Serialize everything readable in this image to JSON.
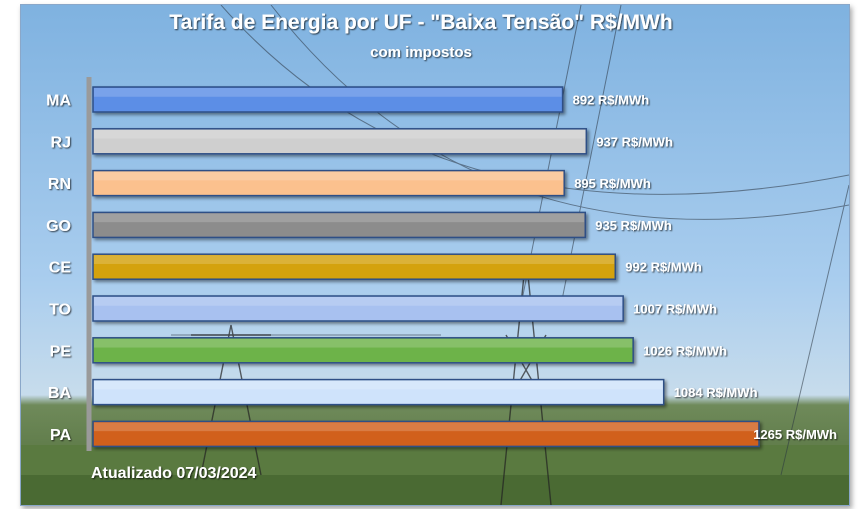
{
  "chart_data": {
    "type": "bar",
    "orientation": "horizontal",
    "title": "Tarifa de Energia por UF - \"Baixa Tensão\" R$/MWh",
    "subtitle": "com impostos",
    "footnote": "Atualizado 07/03/2024",
    "unit": "R$/MWh",
    "categories": [
      "MA",
      "RJ",
      "RN",
      "GO",
      "CE",
      "TO",
      "PE",
      "BA",
      "PA"
    ],
    "values": [
      892,
      937,
      895,
      935,
      992,
      1007,
      1026,
      1084,
      1265
    ],
    "data_labels": [
      "892 R$/MWh",
      "937 R$/MWh",
      "895 R$/MWh",
      "935 R$/MWh",
      "992 R$/MWh",
      "1007 R$/MWh",
      "1026 R$/MWh",
      "1084 R$/MWh",
      "1265 R$/MWh"
    ],
    "bar_colors": [
      "#5b8ee6",
      "#cfcfcf",
      "#fbc18e",
      "#8c8c8c",
      "#d4a20a",
      "#a8c1f0",
      "#6db34a",
      "#cfe3fb",
      "#d1611a"
    ],
    "xlim": [
      0,
      1265
    ],
    "grid": false,
    "legend": "none"
  }
}
